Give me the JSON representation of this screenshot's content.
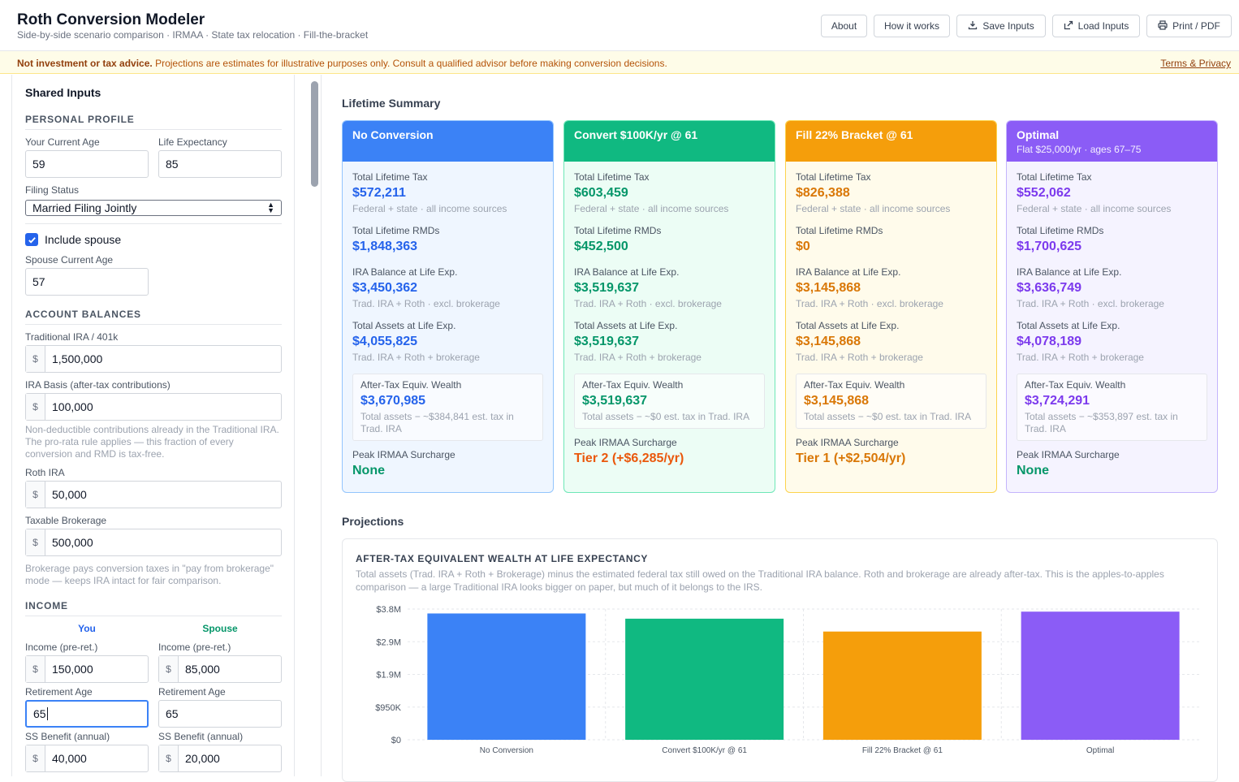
{
  "header": {
    "title": "Roth Conversion Modeler",
    "subtitle": "Side-by-side scenario comparison · IRMAA · State tax relocation · Fill-the-bracket",
    "buttons": {
      "about": "About",
      "how": "How it works",
      "save": "Save Inputs",
      "load": "Load Inputs",
      "print": "Print / PDF"
    },
    "icons": {
      "save": "download-icon",
      "load": "upload-icon",
      "print": "printer-icon"
    }
  },
  "disclaimer": {
    "bold": "Not investment or tax advice.",
    "text": "Projections are estimates for illustrative purposes only. Consult a qualified advisor before making conversion decisions.",
    "link": "Terms & Privacy"
  },
  "sidebar": {
    "title": "Shared Inputs",
    "personal": {
      "heading": "PERSONAL PROFILE",
      "age_label": "Your Current Age",
      "age": "59",
      "life_label": "Life Expectancy",
      "life": "85",
      "filing_label": "Filing Status",
      "filing": "Married Filing Jointly",
      "spouse_check": "Include spouse",
      "spouse_checked": true,
      "spouse_age_label": "Spouse Current Age",
      "spouse_age": "57"
    },
    "balances": {
      "heading": "ACCOUNT BALANCES",
      "currency": "$",
      "trad_label": "Traditional IRA / 401k",
      "trad": "1,500,000",
      "basis_label": "IRA Basis (after-tax contributions)",
      "basis": "100,000",
      "basis_help": "Non-deductible contributions already in the Traditional IRA. The pro-rata rule applies — this fraction of every conversion and RMD is tax-free.",
      "roth_label": "Roth IRA",
      "roth": "50,000",
      "brok_label": "Taxable Brokerage",
      "brok": "500,000",
      "brok_help": "Brokerage pays conversion taxes in \"pay from brokerage\" mode — keeps IRA intact for fair comparison."
    },
    "income": {
      "heading": "INCOME",
      "you": "You",
      "spouse": "Spouse",
      "income_label": "Income (pre-ret.)",
      "you_income": "150,000",
      "spouse_income": "85,000",
      "ret_label": "Retirement Age",
      "you_ret": "65",
      "spouse_ret": "65",
      "ss_label": "SS Benefit (annual)",
      "you_ss": "40,000",
      "spouse_ss": "20,000"
    }
  },
  "summary": {
    "title": "Lifetime Summary",
    "labels": {
      "tax": "Total Lifetime Tax",
      "tax_note": "Federal + state · all income sources",
      "rmd": "Total Lifetime RMDs",
      "ira": "IRA Balance at Life Exp.",
      "ira_note": "Trad. IRA + Roth · excl. brokerage",
      "assets": "Total Assets at Life Exp.",
      "assets_note": "Trad. IRA + Roth + brokerage",
      "aftertax": "After-Tax Equiv. Wealth",
      "irmaa": "Peak IRMAA Surcharge"
    },
    "scenarios": [
      {
        "title": "No Conversion",
        "subtitle": "",
        "color": "#3b82f6",
        "text_color": "#2563eb",
        "bg": "#eff6ff",
        "border": "#93c5fd",
        "tax": "$572,211",
        "rmd": "$1,848,363",
        "ira": "$3,450,362",
        "assets": "$4,055,825",
        "aftertax": "$3,670,985",
        "aftertax_note": "Total assets − ~$384,841 est. tax in Trad. IRA",
        "irmaa": "None",
        "irmaa_color": "#059669"
      },
      {
        "title": "Convert $100K/yr @ 61",
        "subtitle": "",
        "color": "#10b981",
        "text_color": "#059669",
        "bg": "#ecfdf5",
        "border": "#6ee7b7",
        "tax": "$603,459",
        "rmd": "$452,500",
        "ira": "$3,519,637",
        "assets": "$3,519,637",
        "aftertax": "$3,519,637",
        "aftertax_note": "Total assets − ~$0 est. tax in Trad. IRA",
        "irmaa": "Tier 2 (+$6,285/yr)",
        "irmaa_color": "#ea580c"
      },
      {
        "title": "Fill 22% Bracket @ 61",
        "subtitle": "",
        "color": "#f59e0b",
        "text_color": "#d97706",
        "bg": "#fffbeb",
        "border": "#fcd34d",
        "tax": "$826,388",
        "rmd": "$0",
        "ira": "$3,145,868",
        "assets": "$3,145,868",
        "aftertax": "$3,145,868",
        "aftertax_note": "Total assets − ~$0 est. tax in Trad. IRA",
        "irmaa": "Tier 1 (+$2,504/yr)",
        "irmaa_color": "#d97706"
      },
      {
        "title": "Optimal",
        "subtitle": "Flat $25,000/yr · ages 67–75",
        "color": "#8b5cf6",
        "text_color": "#7c3aed",
        "bg": "#f5f3ff",
        "border": "#c4b5fd",
        "tax": "$552,062",
        "rmd": "$1,700,625",
        "ira": "$3,636,749",
        "assets": "$4,078,189",
        "aftertax": "$3,724,291",
        "aftertax_note": "Total assets − ~$353,897 est. tax in Trad. IRA",
        "irmaa": "None",
        "irmaa_color": "#059669"
      }
    ]
  },
  "projections": {
    "title": "Projections",
    "chart_title": "AFTER-TAX EQUIVALENT WEALTH AT LIFE EXPECTANCY",
    "chart_desc": "Total assets (Trad. IRA + Roth + Brokerage) minus the estimated federal tax still owed on the Traditional IRA balance. Roth and brokerage are already after-tax. This is the apples-to-apples comparison — a large Traditional IRA looks bigger on paper, but much of it belongs to the IRS."
  },
  "chart_data": {
    "type": "bar",
    "categories": [
      "No Conversion",
      "Convert $100K/yr @ 61",
      "Fill 22% Bracket @ 61",
      "Optimal"
    ],
    "values": [
      3670985,
      3519637,
      3145868,
      3724291
    ],
    "colors": [
      "#3b82f6",
      "#10b981",
      "#f59e0b",
      "#8b5cf6"
    ],
    "yticks": [
      0,
      950000,
      1900000,
      2850000,
      3800000
    ],
    "ytick_labels": [
      "$0",
      "$950K",
      "$1.9M",
      "$2.9M",
      "$3.8M"
    ],
    "ylim": [
      0,
      3800000
    ],
    "grid": true
  }
}
